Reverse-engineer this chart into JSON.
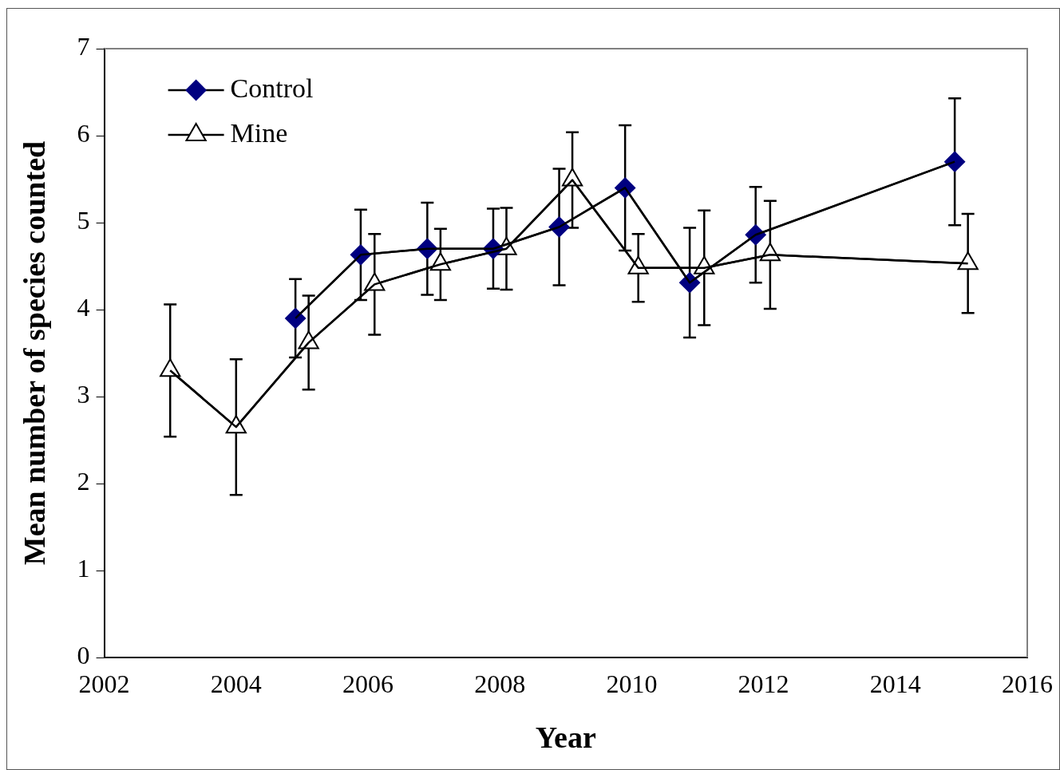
{
  "chart_data": {
    "type": "line",
    "xlabel": "Year",
    "ylabel": "Mean number of species counted",
    "xlim": [
      2002,
      2016
    ],
    "xticks": [
      2002,
      2004,
      2006,
      2008,
      2010,
      2012,
      2014,
      2016
    ],
    "ylim": [
      0,
      7
    ],
    "yticks": [
      0,
      1,
      2,
      3,
      4,
      5,
      6,
      7
    ],
    "grid": false,
    "legend": "top left",
    "series": [
      {
        "name": "Control",
        "color": "#000080",
        "marker": "diamond",
        "x": [
          2004.9,
          2005.89,
          2006.9,
          2007.9,
          2008.9,
          2009.9,
          2010.88,
          2011.88,
          2014.9
        ],
        "values": [
          3.9,
          4.63,
          4.7,
          4.7,
          4.95,
          5.4,
          4.31,
          4.86,
          5.7
        ],
        "errors": [
          0.45,
          0.52,
          0.53,
          0.46,
          0.67,
          0.72,
          0.63,
          0.55,
          0.73
        ]
      },
      {
        "name": "Mine",
        "color": "#ffffff",
        "marker": "triangle",
        "x": [
          2003.0,
          2004.0,
          2005.1,
          2006.1,
          2007.1,
          2008.1,
          2009.1,
          2010.1,
          2011.1,
          2012.1,
          2015.1
        ],
        "values": [
          3.3,
          2.65,
          3.62,
          4.29,
          4.52,
          4.7,
          5.49,
          4.48,
          4.48,
          4.63,
          4.53
        ],
        "errors": [
          0.76,
          0.78,
          0.54,
          0.58,
          0.41,
          0.47,
          0.55,
          0.39,
          0.66,
          0.62,
          0.57
        ]
      }
    ]
  }
}
